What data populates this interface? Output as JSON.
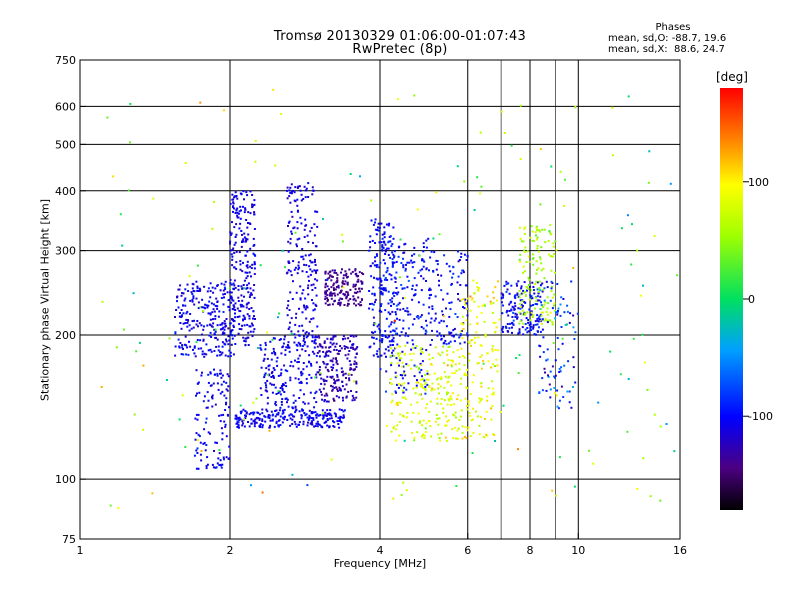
{
  "title_line1": "Tromsø 20130329 01:06:00-01:07:43",
  "title_line2": "RwPretec (8p)",
  "stats": {
    "heading": "Phases",
    "line_o": "mean, sd,O: -88.7, 19.6",
    "line_x": "mean, sd,X:  88.6, 24.7"
  },
  "colorbar": {
    "unit_label": "[deg]",
    "ticks": [
      {
        "value": 100,
        "label": "100"
      },
      {
        "value": 0,
        "label": "0"
      },
      {
        "value": -100,
        "label": "-100"
      }
    ],
    "range": [
      -180,
      180
    ]
  },
  "chart_data": {
    "type": "scatter",
    "title": "Tromsø 20130329 01:06:00-01:07:43",
    "subtitle": "RwPretec (8p)",
    "xlabel": "Frequency [MHz]",
    "ylabel": "Stationary phase Virtual Height [km]",
    "x_scale": "log",
    "y_scale": "log",
    "xlim": [
      1,
      16
    ],
    "ylim": [
      75,
      750
    ],
    "x_ticks": [
      {
        "value": 1,
        "label": "1"
      },
      {
        "value": 2,
        "label": "2"
      },
      {
        "value": 4,
        "label": "4"
      },
      {
        "value": 6,
        "label": "6"
      },
      {
        "value": 8,
        "label": "8"
      },
      {
        "value": 10,
        "label": "10"
      },
      {
        "value": 16,
        "label": "16"
      }
    ],
    "y_ticks": [
      {
        "value": 75,
        "label": "75"
      },
      {
        "value": 100,
        "label": "100"
      },
      {
        "value": 200,
        "label": "200"
      },
      {
        "value": 300,
        "label": "300"
      },
      {
        "value": 400,
        "label": "400"
      },
      {
        "value": 500,
        "label": "500"
      },
      {
        "value": 600,
        "label": "600"
      },
      {
        "value": 750,
        "label": "750"
      }
    ],
    "x_grid_major": [
      2,
      4,
      6,
      8,
      10
    ],
    "x_grid_minor": [
      7,
      9
    ],
    "y_grid": [
      100,
      200,
      300,
      400,
      500,
      600
    ],
    "color_encoding": "phase [deg]",
    "points_sample": [
      {
        "f": 2.1,
        "h": 260,
        "phase": -110
      },
      {
        "f": 2.9,
        "h": 290,
        "phase": -100
      },
      {
        "f": 3.4,
        "h": 265,
        "phase": -140
      },
      {
        "f": 4.4,
        "h": 160,
        "phase": 80
      },
      {
        "f": 5.0,
        "h": 150,
        "phase": 95
      },
      {
        "f": 7.8,
        "h": 225,
        "phase": 45
      },
      {
        "f": 8.8,
        "h": 330,
        "phase": 110
      },
      {
        "f": 6.3,
        "h": 640,
        "phase": 150
      }
    ]
  }
}
